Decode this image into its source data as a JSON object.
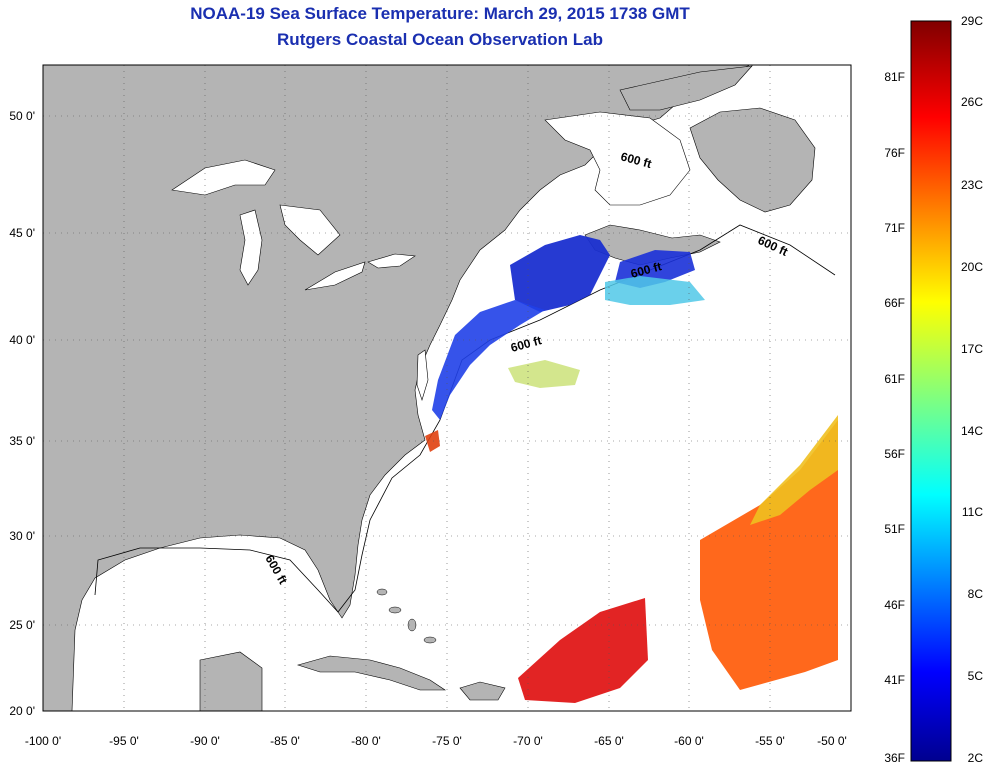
{
  "title": {
    "line1": "NOAA-19 Sea Surface Temperature:  March 29, 2015 1738 GMT",
    "line2": "Rutgers Coastal Ocean Observation Lab"
  },
  "map": {
    "lat_range": [
      20,
      52.5
    ],
    "lon_range": [
      -100,
      -50
    ],
    "lat_ticks": [
      "20 0'",
      "25 0'",
      "30 0'",
      "35 0'",
      "40 0'",
      "45 0'",
      "50 0'"
    ],
    "lon_ticks": [
      "-100 0'",
      "-95 0'",
      "-90 0'",
      "-85 0'",
      "-80 0'",
      "-75 0'",
      "-70 0'",
      "-65 0'",
      "-60 0'",
      "-55 0'",
      "-50 0'"
    ],
    "contour_label": "600 ft",
    "colors": {
      "land": "#b4b4b4",
      "ocean": "#ffffff",
      "title": "#1a2fb0"
    }
  },
  "colorbar": {
    "celsius_labels": [
      "29C",
      "26C",
      "23C",
      "20C",
      "17C",
      "14C",
      "11C",
      "8C",
      "5C",
      "2C"
    ],
    "fahrenheit_labels": [
      "81F",
      "76F",
      "71F",
      "66F",
      "61F",
      "56F",
      "51F",
      "46F",
      "41F",
      "36F"
    ],
    "range_c": [
      2,
      29
    ]
  }
}
